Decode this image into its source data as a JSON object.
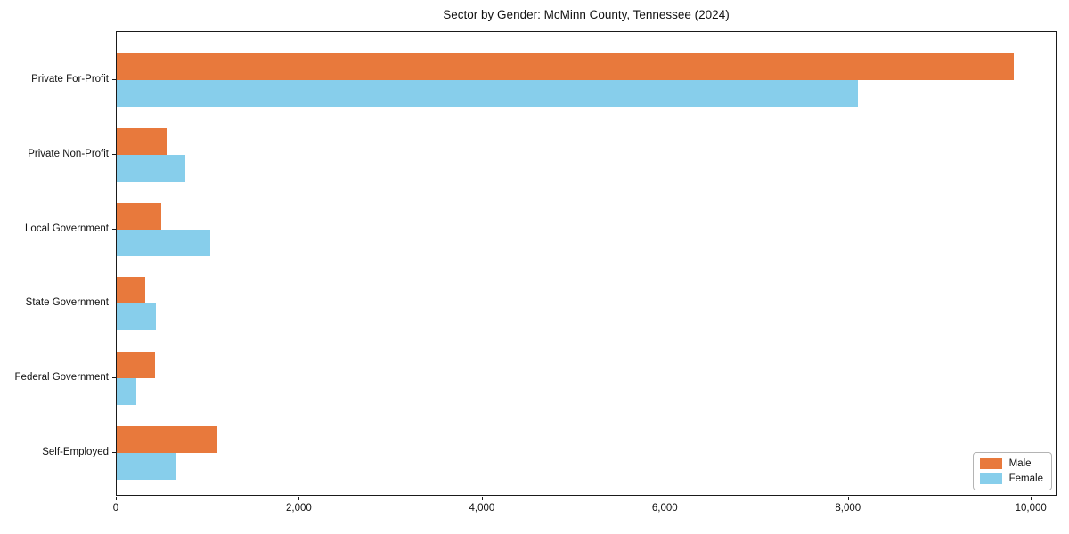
{
  "chart_data": {
    "type": "bar",
    "orientation": "horizontal",
    "title": "Sector by Gender: McMinn County, Tennessee (2024)",
    "categories": [
      "Private For-Profit",
      "Private Non-Profit",
      "Local Government",
      "State Government",
      "Federal Government",
      "Self-Employed"
    ],
    "series": [
      {
        "name": "Male",
        "color": "#E8793C",
        "values": [
          9800,
          550,
          490,
          310,
          420,
          1100
        ]
      },
      {
        "name": "Female",
        "color": "#87CEEB",
        "values": [
          8100,
          750,
          1020,
          430,
          210,
          650
        ]
      }
    ],
    "xlim": [
      0,
      10280
    ],
    "xticks": [
      0,
      2000,
      4000,
      6000,
      8000,
      10000
    ],
    "xtick_labels": [
      "0",
      "2,000",
      "4,000",
      "6,000",
      "8,000",
      "10,000"
    ],
    "xlabel": "",
    "ylabel": "",
    "grid": false,
    "legend": {
      "position": "lower right",
      "entries": [
        {
          "label": "Male",
          "color": "#E8793C"
        },
        {
          "label": "Female",
          "color": "#87CEEB"
        }
      ]
    }
  }
}
